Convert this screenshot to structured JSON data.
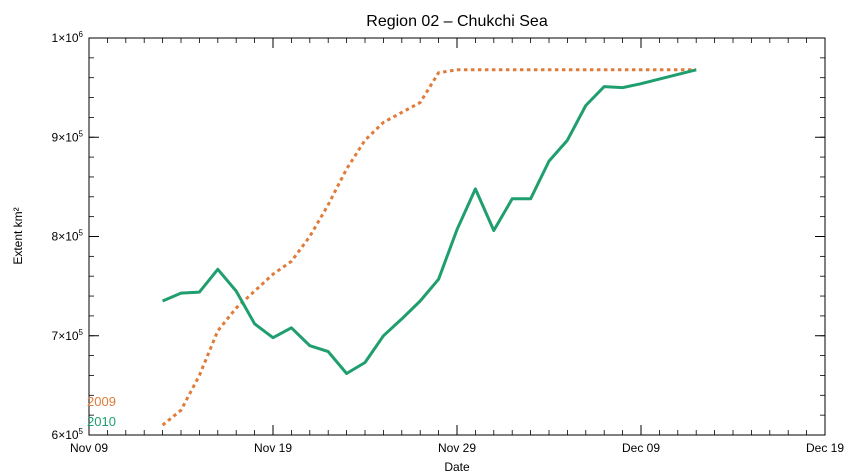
{
  "chart_data": {
    "type": "line",
    "title": "Region 02 – Chukchi Sea",
    "xlabel": "Date",
    "ylabel": "Extent km²",
    "xlim": [
      "Nov 09",
      "Dec 19"
    ],
    "ylim": [
      600000,
      1000000
    ],
    "x_ticks": [
      "Nov 09",
      "Nov 19",
      "Nov 29",
      "Dec 09",
      "Dec 19"
    ],
    "y_ticks": [
      {
        "value": 600000,
        "mantissa": "6",
        "exp": "5"
      },
      {
        "value": 700000,
        "mantissa": "7",
        "exp": "5"
      },
      {
        "value": 800000,
        "mantissa": "8",
        "exp": "5"
      },
      {
        "value": 900000,
        "mantissa": "9",
        "exp": "5"
      },
      {
        "value": 1000000,
        "mantissa": "1",
        "exp": "6"
      }
    ],
    "grid": false,
    "legend_position": "bottom-left",
    "series": [
      {
        "name": "2009",
        "color": "#e07b39",
        "style": "dotted",
        "x": [
          "Nov 13",
          "Nov 14",
          "Nov 15",
          "Nov 16",
          "Nov 17",
          "Nov 18",
          "Nov 19",
          "Nov 20",
          "Nov 21",
          "Nov 22",
          "Nov 23",
          "Nov 24",
          "Nov 25",
          "Nov 26",
          "Nov 27",
          "Nov 28",
          "Nov 29",
          "Nov 30",
          "Dec 01",
          "Dec 02",
          "Dec 03",
          "Dec 04",
          "Dec 05",
          "Dec 06",
          "Dec 07",
          "Dec 08",
          "Dec 09",
          "Dec 10",
          "Dec 11",
          "Dec 12"
        ],
        "values": [
          610000,
          625000,
          660000,
          705000,
          728000,
          745000,
          762000,
          775000,
          800000,
          832000,
          868000,
          897000,
          915000,
          925000,
          935000,
          965000,
          968000,
          968000,
          968000,
          968000,
          968000,
          968000,
          968000,
          968000,
          968000,
          968000,
          968000,
          968000,
          968000,
          968000
        ]
      },
      {
        "name": "2010",
        "color": "#1f9e6e",
        "style": "solid",
        "x": [
          "Nov 13",
          "Nov 14",
          "Nov 15",
          "Nov 16",
          "Nov 17",
          "Nov 18",
          "Nov 19",
          "Nov 20",
          "Nov 21",
          "Nov 22",
          "Nov 23",
          "Nov 24",
          "Nov 25",
          "Nov 26",
          "Nov 27",
          "Nov 28",
          "Nov 29",
          "Nov 30",
          "Dec 01",
          "Dec 02",
          "Dec 03",
          "Dec 04",
          "Dec 05",
          "Dec 06",
          "Dec 07",
          "Dec 08",
          "Dec 09",
          "Dec 12"
        ],
        "values": [
          735000,
          743000,
          744000,
          767000,
          745000,
          712000,
          698000,
          708000,
          690000,
          684000,
          662000,
          673000,
          700000,
          717000,
          735000,
          757000,
          807000,
          848000,
          806000,
          838000,
          838000,
          876000,
          897000,
          932000,
          951000,
          950000,
          954000,
          968000
        ]
      }
    ]
  }
}
